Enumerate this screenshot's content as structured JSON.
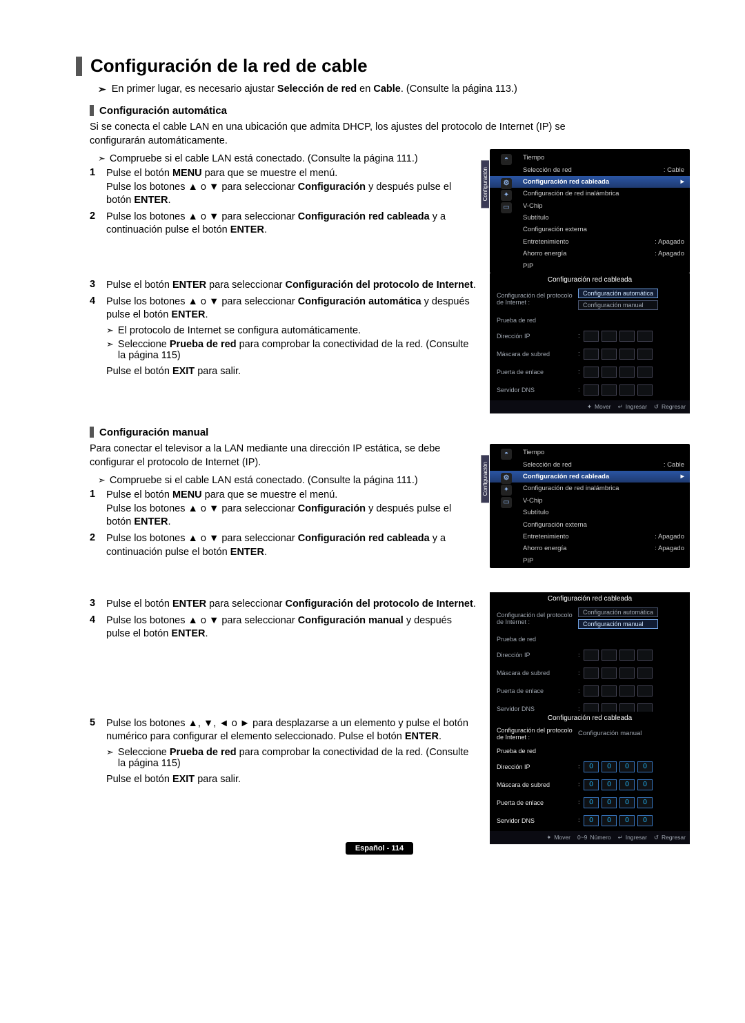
{
  "title": "Configuración de la red de cable",
  "intro": "En primer lugar, es necesario ajustar Selección de red en Cable. (Consulte la página 113.)",
  "auto": {
    "heading": "Configuración automática",
    "para": "Si se conecta el cable LAN en una ubicación que admita DHCP, los ajustes del protocolo de Internet (IP) se configurarán automáticamente.",
    "check": "Compruebe si el cable LAN está conectado. (Consulte la página 111.)",
    "s1a": "Pulse el botón MENU para que se muestre el menú.",
    "s1b": "Pulse los botones ▲ o ▼ para seleccionar Configuración y después pulse el botón ENTER.",
    "s2": "Pulse los botones ▲ o ▼ para seleccionar Configuración red cableada y a continuación pulse el botón ENTER.",
    "s3": "Pulse el botón ENTER para seleccionar Configuración del protocolo de Internet.",
    "s4": "Pulse los botones ▲ o ▼ para seleccionar Configuración automática y después pulse el botón ENTER.",
    "sub1": "El protocolo de Internet se configura automáticamente.",
    "sub2": "Seleccione Prueba de red para comprobar la conectividad de la red. (Consulte la página 115)",
    "exit": "Pulse el botón EXIT para salir."
  },
  "manual": {
    "heading": "Configuración manual",
    "para": "Para conectar el televisor a la LAN mediante una dirección IP estática, se debe configurar el protocolo de Internet (IP).",
    "check": "Compruebe si el cable LAN está conectado. (Consulte la página 111.)",
    "s1a": "Pulse el botón MENU para que se muestre el menú.",
    "s1b": "Pulse los botones ▲ o ▼ para seleccionar Configuración y después pulse el botón ENTER.",
    "s2": "Pulse los botones ▲ o ▼ para seleccionar Configuración red cableada y a continuación pulse el botón ENTER.",
    "s3": "Pulse el botón ENTER para seleccionar Configuración del protocolo de Internet.",
    "s4": "Pulse los botones ▲ o ▼ para seleccionar Configuración manual y después pulse el botón ENTER.",
    "s5": "Pulse los botones ▲, ▼, ◄ o ► para desplazarse a un elemento y pulse el botón numérico para configurar el elemento seleccionado. Pulse el botón ENTER.",
    "sub1": "Seleccione Prueba de red  para comprobar la conectividad de la red. (Consulte la página 115)",
    "exit": "Pulse el botón EXIT para salir."
  },
  "osd_menu": {
    "tab": "Configuración",
    "items": [
      {
        "label": "Tiempo",
        "val": "",
        "hi": false,
        "icon": "◓"
      },
      {
        "label": "Selección de red",
        "val": ": Cable",
        "hi": false,
        "icon": ""
      },
      {
        "label": "Configuración red cableada",
        "val": "",
        "hi": true,
        "icon": "⚙"
      },
      {
        "label": "Configuración de red inalámbrica",
        "val": "",
        "hi": false,
        "icon": "✦"
      },
      {
        "label": "V-Chip",
        "val": "",
        "hi": false,
        "icon": "▭"
      },
      {
        "label": "Subtítulo",
        "val": "",
        "hi": false,
        "icon": ""
      },
      {
        "label": "Configuración externa",
        "val": "",
        "hi": false,
        "icon": ""
      },
      {
        "label": "Entretenimiento",
        "val": ": Apagado",
        "hi": false,
        "icon": ""
      },
      {
        "label": "Ahorro energía",
        "val": ": Apagado",
        "hi": false,
        "icon": ""
      },
      {
        "label": "PIP",
        "val": "",
        "hi": false,
        "icon": ""
      }
    ]
  },
  "dlg": {
    "header": "Configuración red cableada",
    "protocolo": "Configuración del protocolo de Internet :",
    "opt_auto": "Configuración automática",
    "opt_manual": "Configuración manual",
    "prueba": "Prueba de red",
    "ip": "Dirección IP",
    "mask": "Máscara de subred",
    "gw": "Puerta de enlace",
    "dns": "Servidor DNS",
    "val_manual": "Configuración manual",
    "foot_mover": "Mover",
    "foot_ingresar": "Ingresar",
    "foot_regresar": "Regresar",
    "foot_numero": "Número"
  },
  "footer": "Español - 114"
}
